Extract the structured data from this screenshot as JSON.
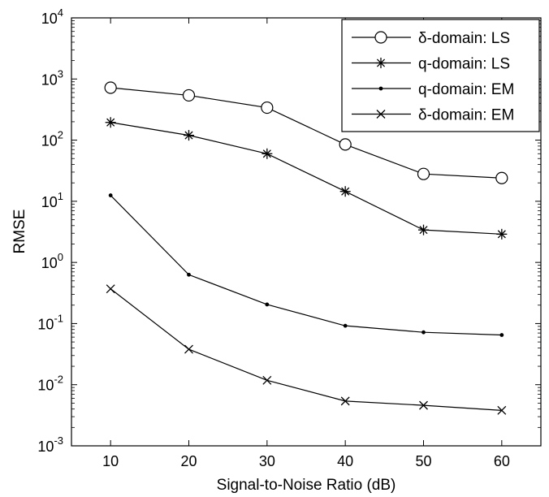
{
  "chart_data": {
    "type": "line",
    "title": "",
    "xlabel": "Signal-to-Noise Ratio (dB)",
    "ylabel": "RMSE",
    "x": [
      10,
      20,
      30,
      40,
      50,
      60
    ],
    "x_ticks": [
      10,
      20,
      30,
      40,
      50,
      60
    ],
    "xlim": [
      5,
      65
    ],
    "yscale": "log",
    "ylim": [
      0.001,
      10000
    ],
    "y_tick_exponents": [
      -3,
      -2,
      -1,
      0,
      1,
      2,
      3,
      4
    ],
    "y_tick_base": "10",
    "grid": false,
    "legend_position": "top-right",
    "series": [
      {
        "name": "δ-domain: LS",
        "marker": "circle",
        "values": [
          720,
          540,
          340,
          85,
          28,
          24
        ]
      },
      {
        "name": "q-domain: LS",
        "marker": "asterisk",
        "values": [
          195,
          120,
          60,
          14.5,
          3.4,
          2.9
        ]
      },
      {
        "name": "q-domain: EM",
        "marker": "dot",
        "values": [
          12.5,
          0.63,
          0.205,
          0.092,
          0.072,
          0.065
        ]
      },
      {
        "name": "δ-domain: EM",
        "marker": "x",
        "values": [
          0.37,
          0.038,
          0.0118,
          0.0054,
          0.0046,
          0.0038
        ]
      }
    ]
  }
}
